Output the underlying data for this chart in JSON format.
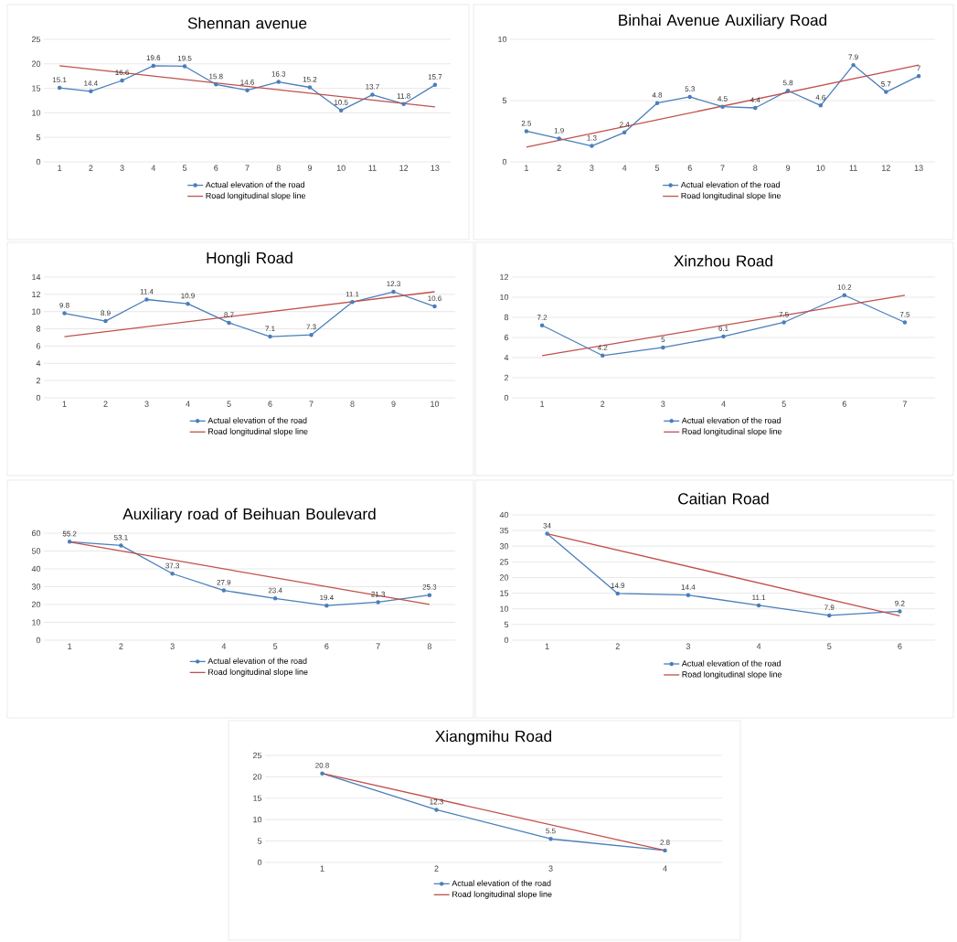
{
  "chart_data": [
    {
      "type": "line",
      "title": "Shennan avenue",
      "x": [
        1,
        2,
        3,
        4,
        5,
        6,
        7,
        8,
        9,
        10,
        11,
        12,
        13
      ],
      "xlim": [
        0.5,
        13.5
      ],
      "xticks": [
        1,
        2,
        3,
        4,
        5,
        6,
        7,
        8,
        9,
        10,
        11,
        12,
        13
      ],
      "ylim": [
        0,
        25
      ],
      "yticks": [
        0,
        5,
        10,
        15,
        20,
        25
      ],
      "grid": "y",
      "legend": "bottom",
      "series": [
        {
          "name": "Actual elevation of the road",
          "color": "#4a7ebb",
          "marker": "circle",
          "values": [
            15.1,
            14.4,
            16.6,
            19.6,
            19.5,
            15.8,
            14.6,
            16.3,
            15.2,
            10.5,
            13.7,
            11.8,
            15.7
          ],
          "value_labels": [
            "15.1",
            "14.4",
            "16.6",
            "19.6",
            "19.5",
            "15.8",
            "14.6",
            "16.3",
            "15.2",
            "10.5",
            "13.7",
            "11.8",
            "15.7"
          ]
        },
        {
          "name": "Road longitudinal slope line",
          "color": "#c0504d",
          "marker": "none",
          "x": [
            1,
            13
          ],
          "values": [
            19.6,
            11.2
          ]
        }
      ]
    },
    {
      "type": "line",
      "title": "Binhai Avenue Auxiliary Road",
      "x": [
        1,
        2,
        3,
        4,
        5,
        6,
        7,
        8,
        9,
        10,
        11,
        12,
        13
      ],
      "xlim": [
        0.5,
        13.5
      ],
      "xticks": [
        1,
        2,
        3,
        4,
        5,
        6,
        7,
        8,
        9,
        10,
        11,
        12,
        13
      ],
      "ylim": [
        0,
        10
      ],
      "yticks": [
        0,
        5,
        10
      ],
      "grid": "y",
      "legend": "bottom",
      "series": [
        {
          "name": "Actual elevation of the road",
          "color": "#4a7ebb",
          "marker": "circle",
          "values": [
            2.5,
            1.9,
            1.3,
            2.4,
            4.8,
            5.3,
            4.5,
            4.4,
            5.8,
            4.6,
            7.9,
            5.7,
            7
          ],
          "value_labels": [
            "2.5",
            "1.9",
            "1.3",
            "2.4",
            "4.8",
            "5.3",
            "4.5",
            "4.4",
            "5.8",
            "4.6",
            "7.9",
            "5.7",
            "7"
          ]
        },
        {
          "name": "Road longitudinal slope line",
          "color": "#c0504d",
          "marker": "none",
          "x": [
            1,
            13
          ],
          "values": [
            1.2,
            7.9
          ]
        }
      ]
    },
    {
      "type": "line",
      "title": "Hongli Road",
      "x": [
        1,
        2,
        3,
        4,
        5,
        6,
        7,
        8,
        9,
        10
      ],
      "xlim": [
        0.5,
        10.5
      ],
      "xticks": [
        1,
        2,
        3,
        4,
        5,
        6,
        7,
        8,
        9,
        10
      ],
      "ylim": [
        0,
        14
      ],
      "yticks": [
        0,
        2,
        4,
        6,
        8,
        10,
        12,
        14
      ],
      "grid": "y",
      "legend": "bottom",
      "series": [
        {
          "name": "Actual elevation of the road",
          "color": "#4a7ebb",
          "marker": "circle",
          "values": [
            9.8,
            8.9,
            11.4,
            10.9,
            8.7,
            7.1,
            7.3,
            11.1,
            12.3,
            10.6
          ],
          "value_labels": [
            "9.8",
            "8.9",
            "11.4",
            "10.9",
            "8.7",
            "7.1",
            "7.3",
            "11.1",
            "12.3",
            "10.6"
          ]
        },
        {
          "name": "Road longitudinal slope line",
          "color": "#c0504d",
          "marker": "none",
          "x": [
            1,
            10
          ],
          "values": [
            7.1,
            12.3
          ]
        }
      ]
    },
    {
      "type": "line",
      "title": "Xinzhou Road",
      "x": [
        1,
        2,
        3,
        4,
        5,
        6,
        7
      ],
      "xlim": [
        0.5,
        7.5
      ],
      "xticks": [
        1,
        2,
        3,
        4,
        5,
        6,
        7
      ],
      "ylim": [
        0,
        12
      ],
      "yticks": [
        0,
        2,
        4,
        6,
        8,
        10,
        12
      ],
      "grid": "y",
      "legend": "bottom",
      "series": [
        {
          "name": "Actual elevation of the road",
          "color": "#4a7ebb",
          "marker": "circle",
          "values": [
            7.2,
            4.2,
            5,
            6.1,
            7.5,
            10.2,
            7.5
          ],
          "value_labels": [
            "7.2",
            "4.2",
            "5",
            "6.1",
            "7.5",
            "10.2",
            "7.5"
          ]
        },
        {
          "name": "Road longitudinal slope line",
          "color": "#c0504d",
          "marker": "none",
          "x": [
            1,
            7
          ],
          "values": [
            4.2,
            10.2
          ]
        }
      ]
    },
    {
      "type": "line",
      "title": "Auxiliary road of Beihuan Boulevard",
      "x": [
        1,
        2,
        3,
        4,
        5,
        6,
        7,
        8
      ],
      "xlim": [
        0.5,
        8.5
      ],
      "xticks": [
        1,
        2,
        3,
        4,
        5,
        6,
        7,
        8
      ],
      "ylim": [
        0,
        60
      ],
      "yticks": [
        0,
        10,
        20,
        30,
        40,
        50,
        60
      ],
      "grid": "y",
      "legend": "bottom",
      "series": [
        {
          "name": "Actual elevation of the road",
          "color": "#4a7ebb",
          "marker": "circle",
          "values": [
            55.2,
            53.1,
            37.3,
            27.9,
            23.4,
            19.4,
            21.3,
            25.3
          ],
          "value_labels": [
            "55.2",
            "53.1",
            "37.3",
            "27.9",
            "23.4",
            "19.4",
            "21.3",
            "25.3"
          ]
        },
        {
          "name": "Road longitudinal slope line",
          "color": "#c0504d",
          "marker": "none",
          "x": [
            1,
            8
          ],
          "values": [
            55,
            20
          ]
        }
      ]
    },
    {
      "type": "line",
      "title": "Caitian Road",
      "x": [
        1,
        2,
        3,
        4,
        5,
        6
      ],
      "xlim": [
        0.5,
        6.5
      ],
      "xticks": [
        1,
        2,
        3,
        4,
        5,
        6
      ],
      "ylim": [
        0,
        40
      ],
      "yticks": [
        0,
        5,
        10,
        15,
        20,
        25,
        30,
        35,
        40
      ],
      "grid": "y",
      "legend": "bottom",
      "series": [
        {
          "name": "Actual elevation of the road",
          "color": "#4a7ebb",
          "marker": "circle",
          "values": [
            34,
            14.9,
            14.4,
            11.1,
            7.9,
            9.2
          ],
          "value_labels": [
            "34",
            "14.9",
            "14.4",
            "11.1",
            "7.9",
            "9.2"
          ]
        },
        {
          "name": "Road longitudinal slope line",
          "color": "#c0504d",
          "marker": "none",
          "x": [
            1,
            6
          ],
          "values": [
            34,
            7.8
          ]
        }
      ]
    },
    {
      "type": "line",
      "title": "Xiangmihu Road",
      "x": [
        1,
        2,
        3,
        4
      ],
      "xlim": [
        0.5,
        4.5
      ],
      "xticks": [
        1,
        2,
        3,
        4
      ],
      "ylim": [
        0,
        25
      ],
      "yticks": [
        0,
        5,
        10,
        15,
        20,
        25
      ],
      "grid": "y",
      "legend": "bottom",
      "series": [
        {
          "name": "Actual elevation of the road",
          "color": "#4a7ebb",
          "marker": "circle",
          "values": [
            20.8,
            12.3,
            5.5,
            2.8
          ],
          "value_labels": [
            "20.8",
            "12.3",
            "5.5",
            "2.8"
          ]
        },
        {
          "name": "Road longitudinal slope line",
          "color": "#c0504d",
          "marker": "none",
          "x": [
            1,
            4
          ],
          "values": [
            20.8,
            2.8
          ]
        }
      ]
    }
  ]
}
